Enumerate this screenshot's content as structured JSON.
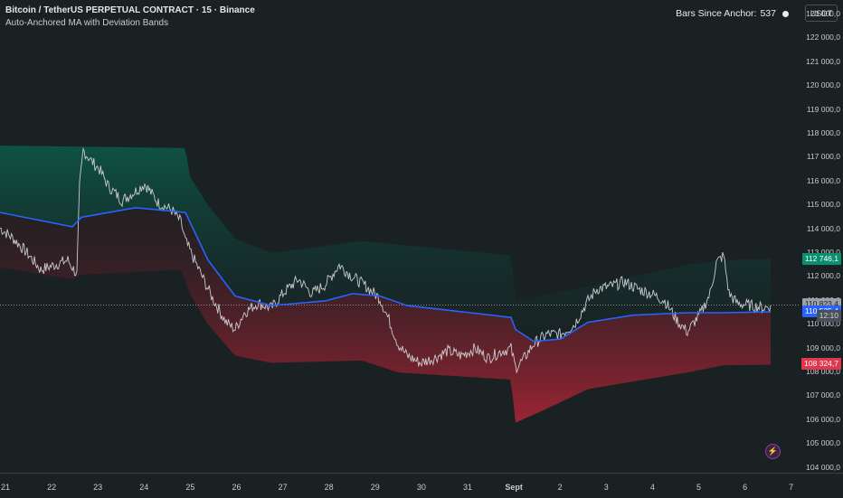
{
  "header": {
    "symbol_title": "Bitcoin / TetherUS PERPETUAL CONTRACT · 15 · Binance",
    "indicator_name": "Auto-Anchored MA with Deviation Bands"
  },
  "status": {
    "bars_since_anchor_label": "Bars Since Anchor:",
    "bars_since_anchor_value": "537"
  },
  "currency_button": "USDT",
  "y_axis": {
    "ticks": [
      "123 000,0",
      "122 000,0",
      "121 000,0",
      "120 000,0",
      "119 000,0",
      "118 000,0",
      "117 000,0",
      "116 000,0",
      "115 000,0",
      "114 000,0",
      "113 000,0",
      "112 000,0",
      "111 000,0",
      "110 000,0",
      "109 000,0",
      "108 000,0",
      "107 000,0",
      "106 000,0",
      "105 000,0",
      "104 000,0"
    ],
    "tick_values": [
      123000,
      122000,
      121000,
      120000,
      119000,
      118000,
      117000,
      116000,
      115000,
      114000,
      113000,
      112000,
      111000,
      110000,
      109000,
      108000,
      107000,
      106000,
      105000,
      104000
    ]
  },
  "price_tags": {
    "upper_band": {
      "label": "112 746,1",
      "value": 112746.1,
      "color": "#0a8f6f"
    },
    "last_price": {
      "label": "110 823,4",
      "value": 110823.4,
      "color": "#9aa0a8"
    },
    "countdown": {
      "label": "12:10",
      "color": "#4a4f58"
    },
    "ma": {
      "label": "110 535,4",
      "value": 110535.4,
      "color": "#2962ff"
    },
    "lower_band": {
      "label": "108 324,7",
      "value": 108324.7,
      "color": "#e0374d"
    }
  },
  "x_axis": {
    "ticks": [
      "21",
      "22",
      "23",
      "24",
      "25",
      "26",
      "27",
      "28",
      "29",
      "30",
      "31",
      "Sept",
      "2",
      "3",
      "4",
      "5",
      "6",
      "7"
    ]
  },
  "colors": {
    "background": "#1a2123",
    "ma_line": "#2962ff",
    "upper_band": "#0e5c4a",
    "lower_band": "#b22a3a",
    "price_line": "#c9cbd0"
  },
  "chart_data": {
    "type": "line",
    "ylim": [
      103800,
      123600
    ],
    "series": [
      {
        "name": "",
        "points": [
          [
            0,
            114050
          ],
          [
            15,
            113600
          ],
          [
            30,
            113000
          ],
          [
            45,
            112300
          ],
          [
            60,
            112500
          ],
          [
            75,
            112700
          ],
          [
            85,
            112100
          ],
          [
            88,
            115800
          ],
          [
            92,
            117300
          ],
          [
            100,
            116900
          ],
          [
            110,
            116500
          ],
          [
            120,
            115800
          ],
          [
            135,
            115200
          ],
          [
            150,
            115600
          ],
          [
            160,
            115900
          ],
          [
            175,
            115100
          ],
          [
            190,
            114800
          ],
          [
            200,
            114300
          ],
          [
            205,
            113500
          ],
          [
            210,
            113100
          ],
          [
            215,
            112700
          ],
          [
            225,
            111900
          ],
          [
            235,
            111100
          ],
          [
            250,
            110100
          ],
          [
            260,
            109800
          ],
          [
            270,
            110500
          ],
          [
            285,
            110900
          ],
          [
            300,
            110700
          ],
          [
            315,
            111400
          ],
          [
            330,
            111900
          ],
          [
            345,
            111300
          ],
          [
            360,
            111700
          ],
          [
            375,
            112500
          ],
          [
            390,
            112000
          ],
          [
            405,
            111600
          ],
          [
            420,
            111100
          ],
          [
            430,
            110200
          ],
          [
            440,
            109200
          ],
          [
            450,
            108700
          ],
          [
            465,
            108400
          ],
          [
            480,
            108600
          ],
          [
            495,
            108900
          ],
          [
            510,
            108700
          ],
          [
            525,
            109000
          ],
          [
            540,
            108600
          ],
          [
            555,
            108900
          ],
          [
            565,
            109000
          ],
          [
            570,
            108200
          ],
          [
            578,
            108500
          ],
          [
            590,
            109200
          ],
          [
            605,
            109600
          ],
          [
            620,
            109600
          ],
          [
            635,
            110000
          ],
          [
            650,
            111000
          ],
          [
            660,
            111500
          ],
          [
            675,
            111600
          ],
          [
            690,
            111800
          ],
          [
            705,
            111500
          ],
          [
            720,
            111300
          ],
          [
            735,
            111000
          ],
          [
            750,
            110100
          ],
          [
            760,
            109700
          ],
          [
            775,
            110500
          ],
          [
            785,
            111300
          ],
          [
            792,
            112600
          ],
          [
            800,
            112900
          ],
          [
            806,
            111300
          ],
          [
            815,
            110900
          ],
          [
            830,
            110800
          ],
          [
            845,
            110700
          ],
          [
            852,
            110800
          ]
        ]
      },
      {
        "name": "",
        "points": [
          [
            0,
            114700
          ],
          [
            80,
            114100
          ],
          [
            90,
            114500
          ],
          [
            150,
            114900
          ],
          [
            205,
            114700
          ],
          [
            210,
            114300
          ],
          [
            230,
            112700
          ],
          [
            260,
            111200
          ],
          [
            300,
            110800
          ],
          [
            330,
            110900
          ],
          [
            360,
            111000
          ],
          [
            390,
            111300
          ],
          [
            420,
            111200
          ],
          [
            450,
            110800
          ],
          [
            520,
            110500
          ],
          [
            565,
            110300
          ],
          [
            570,
            109800
          ],
          [
            590,
            109300
          ],
          [
            620,
            109400
          ],
          [
            650,
            110100
          ],
          [
            700,
            110400
          ],
          [
            760,
            110500
          ],
          [
            800,
            110500
          ],
          [
            852,
            110535
          ]
        ]
      },
      {
        "name": "",
        "points": [
          [
            0,
            117500
          ],
          [
            205,
            117400
          ],
          [
            210,
            116200
          ],
          [
            230,
            115000
          ],
          [
            260,
            113600
          ],
          [
            300,
            113000
          ],
          [
            400,
            113500
          ],
          [
            565,
            112900
          ],
          [
            570,
            111000
          ],
          [
            650,
            111600
          ],
          [
            760,
            112500
          ],
          [
            800,
            112700
          ],
          [
            852,
            112746
          ]
        ]
      },
      {
        "name": "",
        "points": [
          [
            0,
            112400
          ],
          [
            80,
            111900
          ],
          [
            90,
            112100
          ],
          [
            200,
            112300
          ],
          [
            210,
            111300
          ],
          [
            230,
            110000
          ],
          [
            260,
            108700
          ],
          [
            300,
            108400
          ],
          [
            400,
            108500
          ],
          [
            440,
            108000
          ],
          [
            565,
            107700
          ],
          [
            570,
            105900
          ],
          [
            600,
            106400
          ],
          [
            650,
            107300
          ],
          [
            760,
            108000
          ],
          [
            800,
            108300
          ],
          [
            852,
            108325
          ]
        ]
      }
    ]
  }
}
